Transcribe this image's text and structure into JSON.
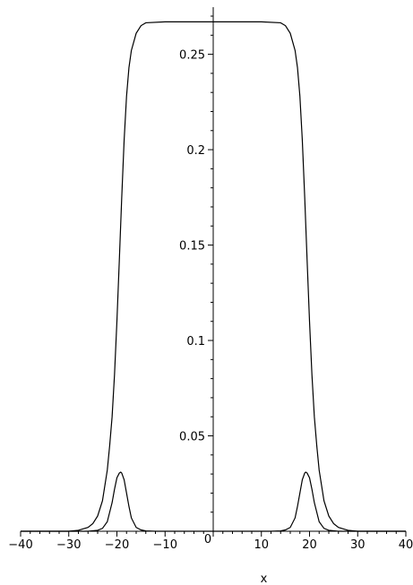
{
  "chart_data": {
    "type": "line",
    "title": "",
    "xlabel": "x",
    "ylabel": "",
    "xlim": [
      -40,
      40
    ],
    "ylim": [
      0,
      0.27
    ],
    "grid": false,
    "legend": "none",
    "line_color": "#000000",
    "x_ticks": [
      -40,
      -30,
      -20,
      -10,
      0,
      10,
      20,
      30,
      40
    ],
    "x_tick_labels": [
      "−40",
      "−30",
      "−20",
      "−10",
      "0",
      "10",
      "20",
      "30",
      "40"
    ],
    "y_ticks": [
      0.05,
      0.1,
      0.15,
      0.2,
      0.25
    ],
    "y_tick_labels": [
      "0.05",
      "0.1",
      "0.15",
      "0.2",
      "0.25"
    ],
    "series": [
      {
        "x": [
          -40,
          -30,
          -28,
          -26,
          -25,
          -24,
          -23,
          -22,
          -21.5,
          -21,
          -20.5,
          -20,
          -19.5,
          -19,
          -18.5,
          -18,
          -17.5,
          -17,
          -16,
          -15,
          -14,
          -10,
          0,
          10,
          14,
          15,
          16,
          17,
          17.5,
          18,
          18.5,
          19,
          19.5,
          20,
          20.5,
          21,
          21.5,
          22,
          23,
          24,
          25,
          26,
          28,
          30,
          40
        ],
        "y": [
          0,
          0,
          0.0005,
          0.002,
          0.004,
          0.008,
          0.016,
          0.032,
          0.045,
          0.06,
          0.082,
          0.11,
          0.142,
          0.175,
          0.205,
          0.228,
          0.243,
          0.252,
          0.261,
          0.265,
          0.2665,
          0.267,
          0.267,
          0.267,
          0.2665,
          0.265,
          0.261,
          0.252,
          0.243,
          0.228,
          0.205,
          0.175,
          0.142,
          0.11,
          0.082,
          0.06,
          0.045,
          0.032,
          0.016,
          0.008,
          0.004,
          0.002,
          0.0005,
          0,
          0
        ]
      },
      {
        "x": [
          -40,
          -26,
          -24,
          -23,
          -22,
          -21,
          -20.5,
          -20,
          -19.5,
          -19.2,
          -19,
          -18.5,
          -18,
          -17.5,
          -17,
          -16,
          -15,
          -14,
          -12,
          0,
          12,
          14,
          15,
          16,
          17,
          17.5,
          18,
          18.5,
          19,
          19.2,
          19.5,
          20,
          20.5,
          21,
          22,
          23,
          24,
          26,
          40
        ],
        "y": [
          0,
          0,
          0.0005,
          0.0015,
          0.005,
          0.015,
          0.022,
          0.028,
          0.0305,
          0.031,
          0.0305,
          0.027,
          0.02,
          0.013,
          0.007,
          0.002,
          0.0007,
          0.0002,
          0,
          0,
          0,
          0.0002,
          0.0007,
          0.002,
          0.007,
          0.013,
          0.02,
          0.027,
          0.0305,
          0.031,
          0.0305,
          0.028,
          0.022,
          0.015,
          0.005,
          0.0015,
          0.0005,
          0,
          0
        ]
      }
    ]
  }
}
